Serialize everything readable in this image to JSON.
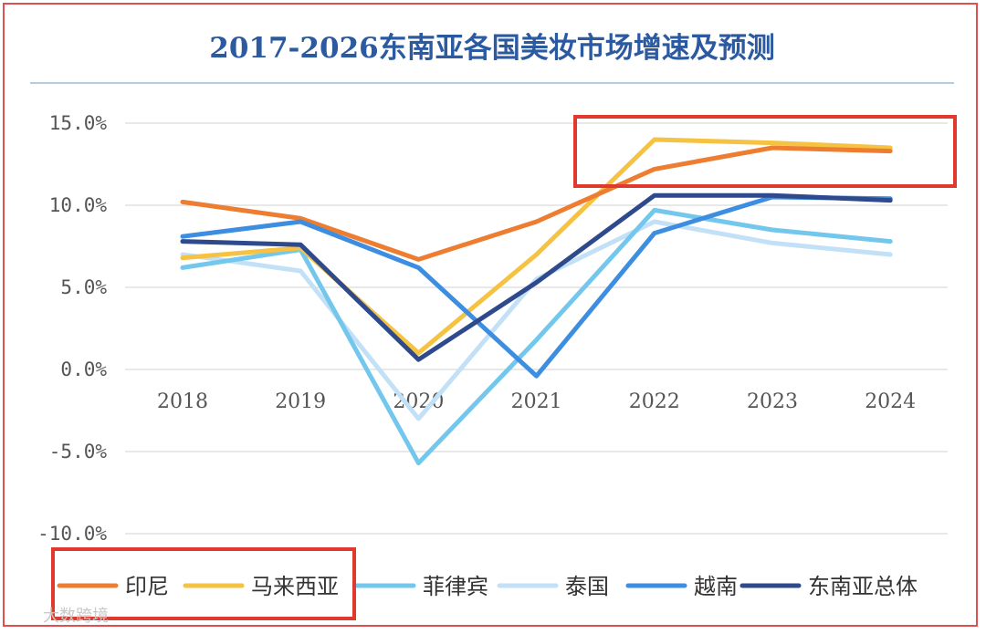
{
  "chart_data": {
    "type": "line",
    "title": "2017-2026东南亚各国美妆市场增速及预测",
    "categories": [
      "2018",
      "2019",
      "2020",
      "2021",
      "2022",
      "2023",
      "2024"
    ],
    "y_ticks": [
      "15.0%",
      "10.0%",
      "5.0%",
      "0.0%",
      "-5.0%",
      "-10.0%"
    ],
    "ylim": [
      -10,
      15
    ],
    "grid": true,
    "legend_position": "bottom",
    "series": [
      {
        "name": "印尼",
        "color": "#ed7d31",
        "values": [
          10.2,
          9.2,
          6.7,
          9.0,
          12.2,
          13.5,
          13.3
        ]
      },
      {
        "name": "马来西亚",
        "color": "#f5c242",
        "values": [
          6.8,
          7.4,
          1.0,
          7.0,
          14.0,
          13.8,
          13.5
        ]
      },
      {
        "name": "菲律宾",
        "color": "#74c7ec",
        "values": [
          6.2,
          7.3,
          -5.7,
          1.8,
          9.7,
          8.5,
          7.8
        ]
      },
      {
        "name": "泰国",
        "color": "#c2e0f6",
        "values": [
          7.0,
          6.0,
          -3.0,
          5.5,
          9.0,
          7.7,
          7.0
        ]
      },
      {
        "name": "越南",
        "color": "#3d8ee0",
        "values": [
          8.1,
          9.0,
          6.2,
          -0.4,
          8.3,
          10.5,
          10.4
        ]
      },
      {
        "name": "东南亚总体",
        "color": "#2e4a8c",
        "values": [
          7.8,
          7.6,
          0.6,
          5.3,
          10.6,
          10.6,
          10.3
        ]
      }
    ]
  },
  "watermark": "大数跨境",
  "highlight_color": "#e03a2e"
}
